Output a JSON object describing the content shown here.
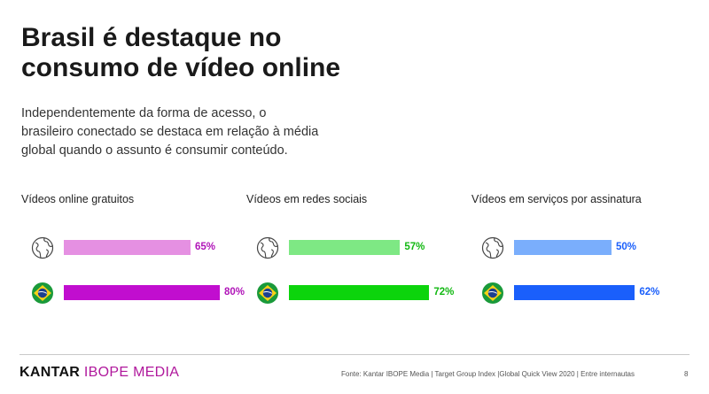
{
  "title": [
    "Brasil é destaque no",
    "consumo de vídeo online"
  ],
  "subtitle": [
    "Independentemente da forma de acesso, o",
    "brasileiro conectado se destaca em relação à média",
    "global quando o assunto é consumir conteúdo."
  ],
  "panels": [
    {
      "title": "Vídeos online gratuitos",
      "global": {
        "value": 65,
        "label": "65%",
        "color": "#e590e2"
      },
      "brazil": {
        "value": 80,
        "label": "80%",
        "color": "#c10ecf"
      },
      "text_color": "#b014b8"
    },
    {
      "title": "Vídeos em redes sociais",
      "global": {
        "value": 57,
        "label": "57%",
        "color": "#7ee884"
      },
      "brazil": {
        "value": 72,
        "label": "72%",
        "color": "#0cd40c"
      },
      "text_color": "#12b812"
    },
    {
      "title": "Vídeos em serviços por assinatura",
      "global": {
        "value": 50,
        "label": "50%",
        "color": "#7aaefc"
      },
      "brazil": {
        "value": 62,
        "label": "62%",
        "color": "#1a5ffb"
      },
      "text_color": "#1a5ffb"
    }
  ],
  "icons": {
    "global": "globe-icon",
    "brazil": "brazil-flag-icon"
  },
  "footer": {
    "brand_bold": "KANTAR",
    "brand_light": "IBOPE MEDIA",
    "brand_color": "#b0189c",
    "source": "Fonte: Kantar IBOPE Media | Target Group Index |Global Quick View 2020 | Entre internautas",
    "page_number": "8"
  }
}
